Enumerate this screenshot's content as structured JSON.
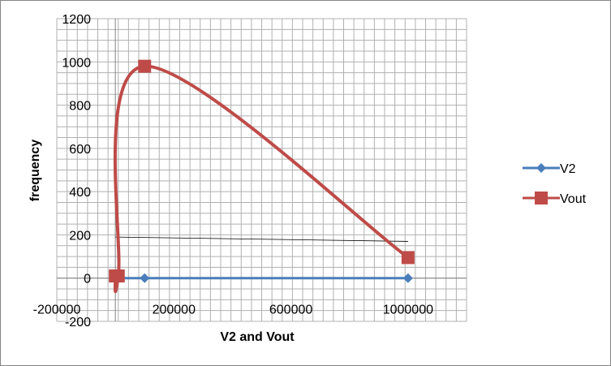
{
  "chart_data": {
    "type": "scatter",
    "xlabel": "V2 and Vout",
    "ylabel": "frequency",
    "xlim": [
      -200000,
      1200000
    ],
    "ylim": [
      -200,
      1200
    ],
    "x_tick_labels": [
      "-200000",
      "200000",
      "600000",
      "1000000"
    ],
    "y_tick_labels": [
      "-200",
      "0",
      "200",
      "400",
      "600",
      "800",
      "1000",
      "1200"
    ],
    "grid": true,
    "legend_position": "right",
    "series": [
      {
        "name": "V2",
        "color": "#4A7EBB",
        "marker": "diamond",
        "x": [
          0,
          100000,
          1000000
        ],
        "y": [
          0,
          0,
          0
        ]
      },
      {
        "name": "Vout",
        "color": "#BE4B48",
        "marker": "square",
        "x": [
          0,
          10000,
          100000,
          1000000
        ],
        "y": [
          10,
          10,
          980,
          95
        ]
      }
    ],
    "annotation_line": {
      "x": [
        0,
        1000000
      ],
      "y": [
        190,
        170
      ],
      "color": "#000000"
    }
  }
}
